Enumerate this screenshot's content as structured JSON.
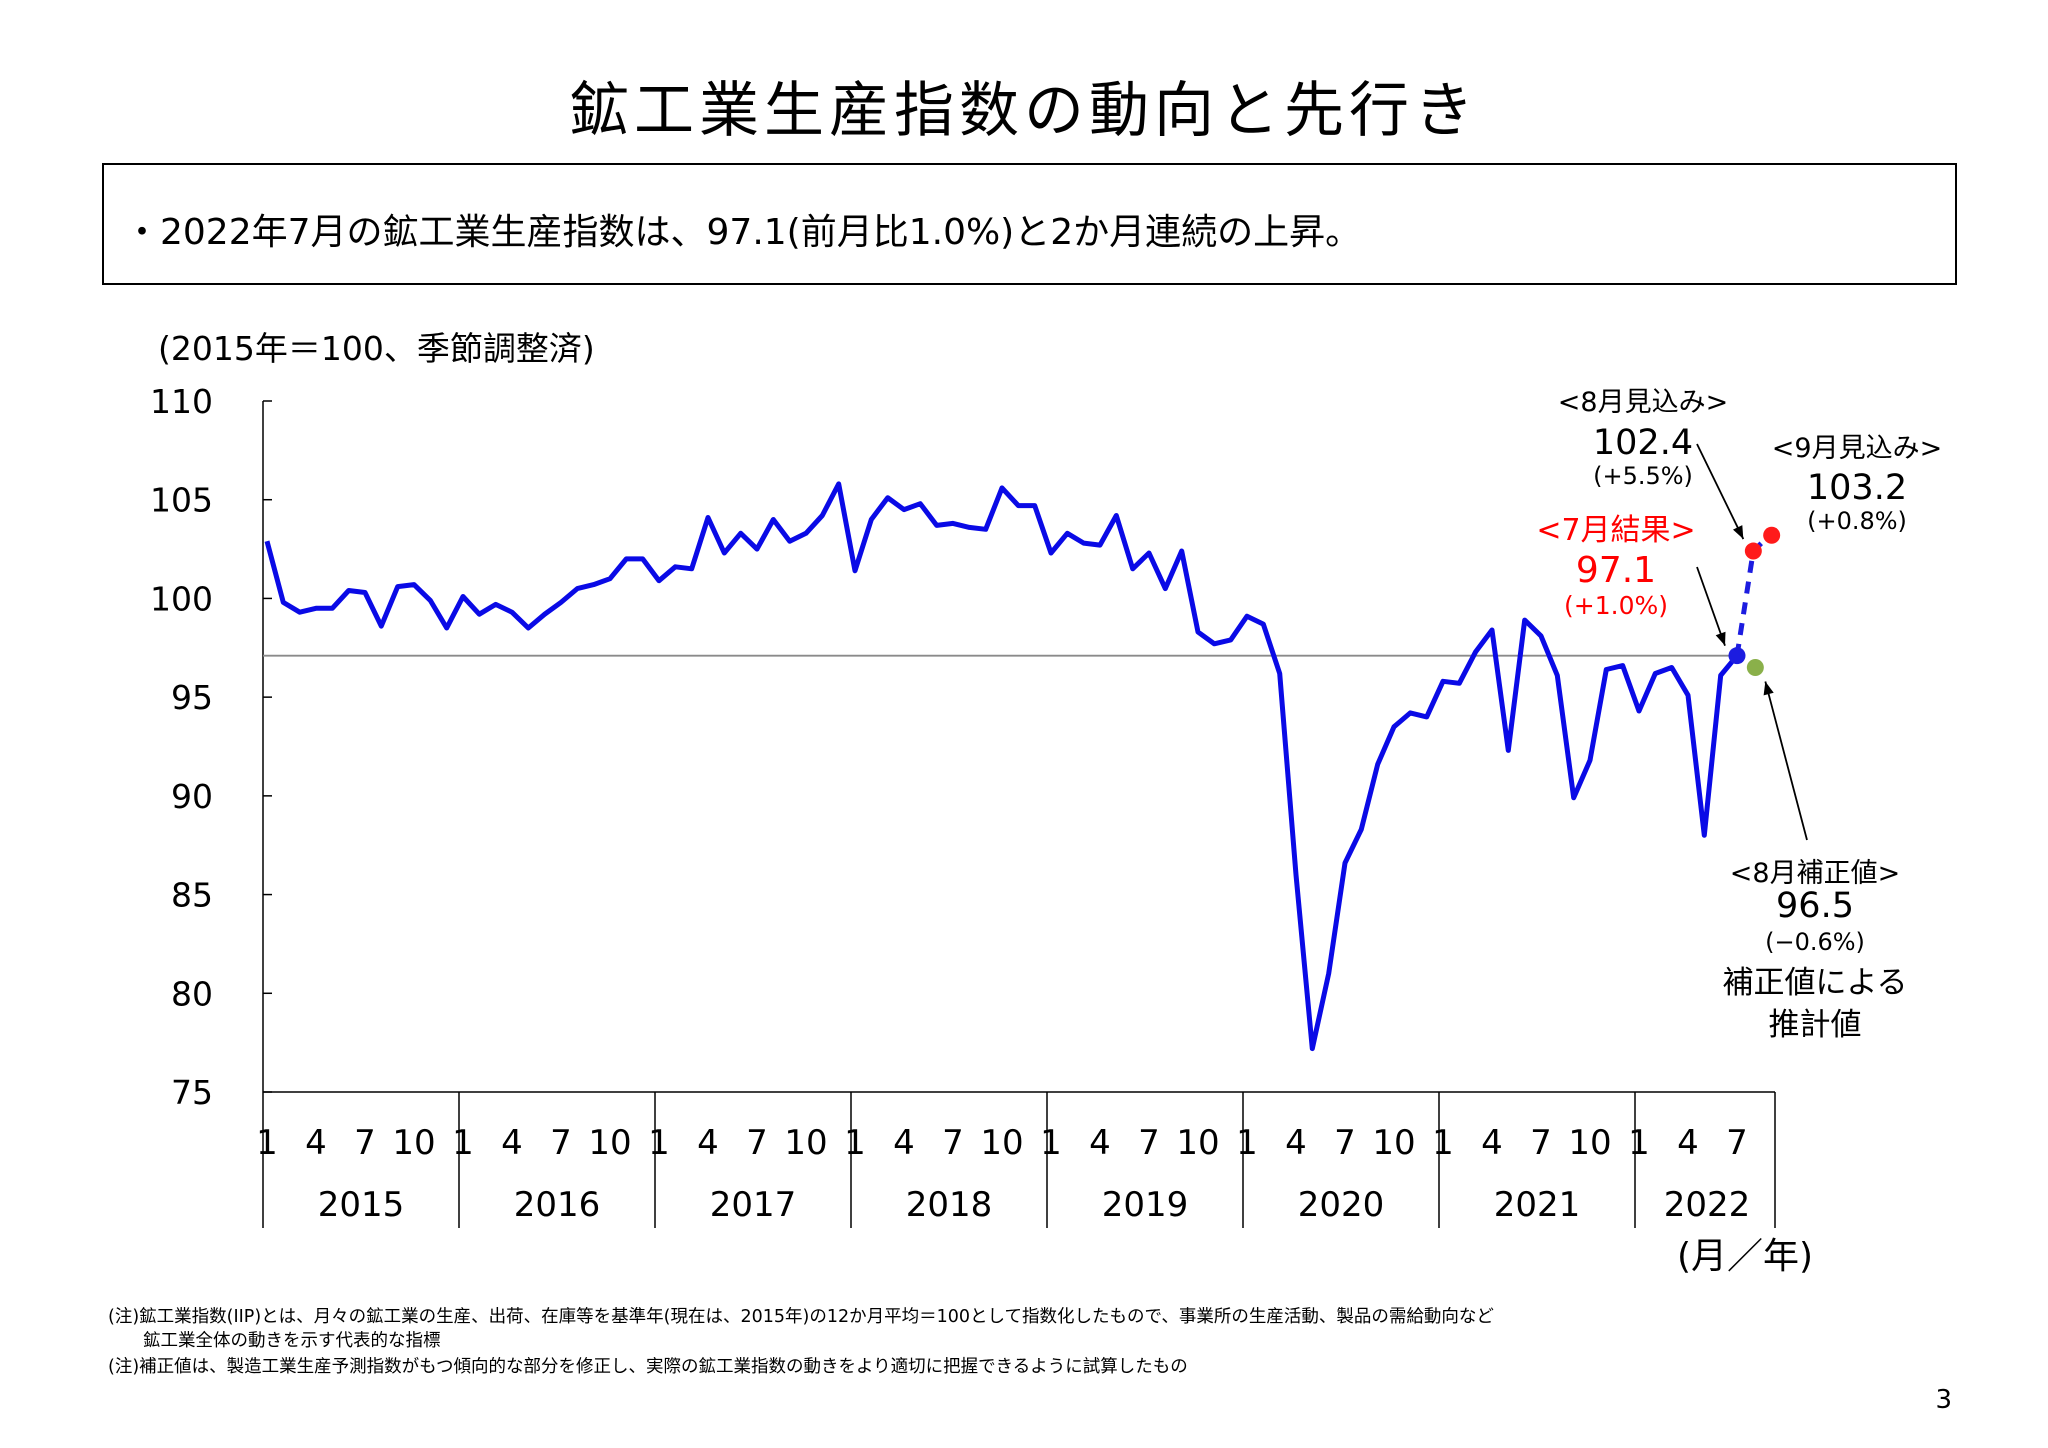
{
  "title": "鉱工業生産指数の動向と先行き",
  "summary": "・2022年7月の鉱工業生産指数は、97.1(前月比1.0%)と2か月連続の上昇。",
  "unit_note": "(2015年＝100、季節調整済)",
  "page_number": "3",
  "footnotes": [
    "(注)鉱工業指数(IIP)とは、月々の鉱工業の生産、出荷、在庫等を基準年(現在は、2015年)の12か月平均＝100として指数化したもので、事業所の生産活動、製品の需給動向など",
    "　　鉱工業全体の動きを示す代表的な指標",
    "(注)補正値は、製造工業生産予測指数がもつ傾向的な部分を修正し、実際の鉱工業指数の動きをより適切に把握できるように試算したもの"
  ],
  "chart_data": {
    "type": "line",
    "ylim": [
      75,
      110
    ],
    "y_ticks": [
      "75",
      "80",
      "85",
      "90",
      "95",
      "100",
      "105",
      "110"
    ],
    "x_tick_labels": [
      "1",
      "4",
      "7",
      "10"
    ],
    "x_tick_labels_2022": [
      "1",
      "4",
      "7"
    ],
    "years": [
      "2015",
      "2016",
      "2017",
      "2018",
      "2019",
      "2020",
      "2021",
      "2022"
    ],
    "xlabel": "(月／年)",
    "grid": false,
    "reference_line": 97.1,
    "series": [
      {
        "color": "#0a0ae6",
        "start": "2015-01",
        "values": [
          102.9,
          99.8,
          99.3,
          99.5,
          99.5,
          100.4,
          100.3,
          98.6,
          100.6,
          100.7,
          99.9,
          98.5,
          100.1,
          99.2,
          99.7,
          99.3,
          98.5,
          99.2,
          99.8,
          100.5,
          100.7,
          101.0,
          102.0,
          102.0,
          100.9,
          101.6,
          101.5,
          104.1,
          102.3,
          103.3,
          102.5,
          104.0,
          102.9,
          103.3,
          104.2,
          105.8,
          101.4,
          104.0,
          105.1,
          104.5,
          104.8,
          103.7,
          103.8,
          103.6,
          103.5,
          105.6,
          104.7,
          104.7,
          102.3,
          103.3,
          102.8,
          102.7,
          104.2,
          101.5,
          102.3,
          100.5,
          102.4,
          98.3,
          97.7,
          97.9,
          99.1,
          98.7,
          96.2,
          86.0,
          77.2,
          81.0,
          86.6,
          88.3,
          91.6,
          93.5,
          94.2,
          94.0,
          95.8,
          95.7,
          97.3,
          98.4,
          92.3,
          98.9,
          98.1,
          96.1,
          89.9,
          91.8,
          96.4,
          96.6,
          94.3,
          96.2,
          96.5,
          95.1,
          88.0,
          96.1,
          97.1
        ]
      }
    ],
    "points": [
      {
        "label": "<7月結果>",
        "value": "97.1",
        "change": "(+1.0%)",
        "x": "2022-07",
        "y": 97.1,
        "color": "#1c1ce0",
        "label_color": "#ff0000"
      },
      {
        "label": "<8月見込み>",
        "value": "102.4",
        "change": "(+5.5%)",
        "x": "2022-08",
        "y": 102.4,
        "color": "#ff1a1a",
        "label_color": "#000000"
      },
      {
        "label": "<9月見込み>",
        "value": "103.2",
        "change": "(+0.8%)",
        "x": "2022-09",
        "y": 103.2,
        "color": "#ff1a1a",
        "label_color": "#000000"
      },
      {
        "label": "<8月補正値>",
        "value": "96.5",
        "change": "(−0.6%)",
        "x": "2022-08",
        "y": 96.5,
        "color": "#8ab04a",
        "label_color": "#000000",
        "note_line1": "補正値による",
        "note_line2": "推計値"
      }
    ],
    "forecast_line": {
      "color": "#1c1ce0",
      "style": "dashed",
      "from": "2022-07",
      "to": "2022-09"
    }
  }
}
